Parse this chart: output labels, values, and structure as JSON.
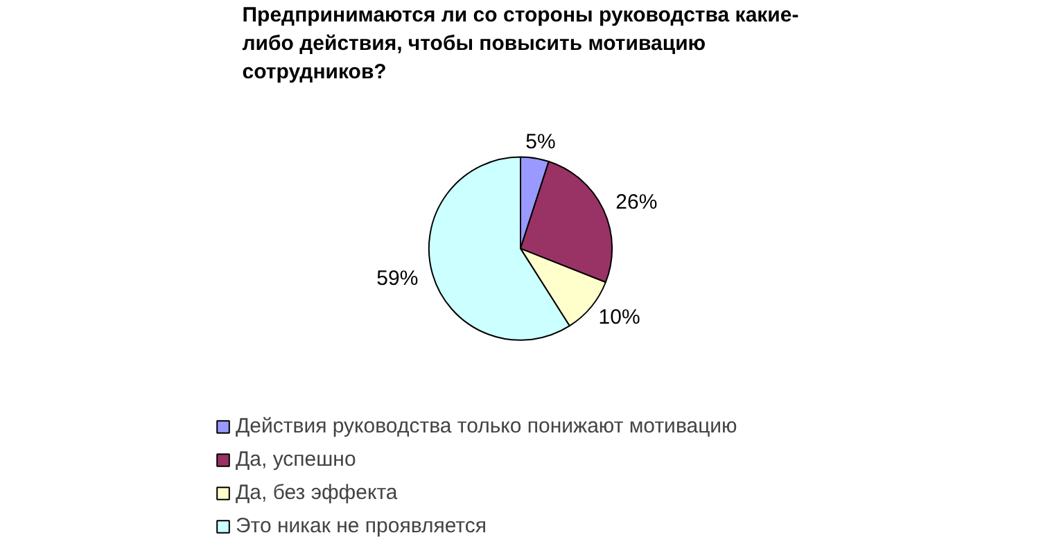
{
  "chart_data": {
    "type": "pie",
    "title": "Предпринимаются ли со стороны руководства какие-либо действия, чтобы повысить мотивацию сотрудников?",
    "categories": [
      "Действия руководства только понижают мотивацию",
      "Да, успешно",
      "Да, без эффекта",
      "Это никак не проявляется"
    ],
    "values": [
      5,
      26,
      10,
      59
    ],
    "value_labels": [
      "5%",
      "26%",
      "10%",
      "59%"
    ],
    "colors": [
      "#9999ff",
      "#993366",
      "#ffffcc",
      "#ccffff"
    ],
    "legend": "bottom"
  }
}
